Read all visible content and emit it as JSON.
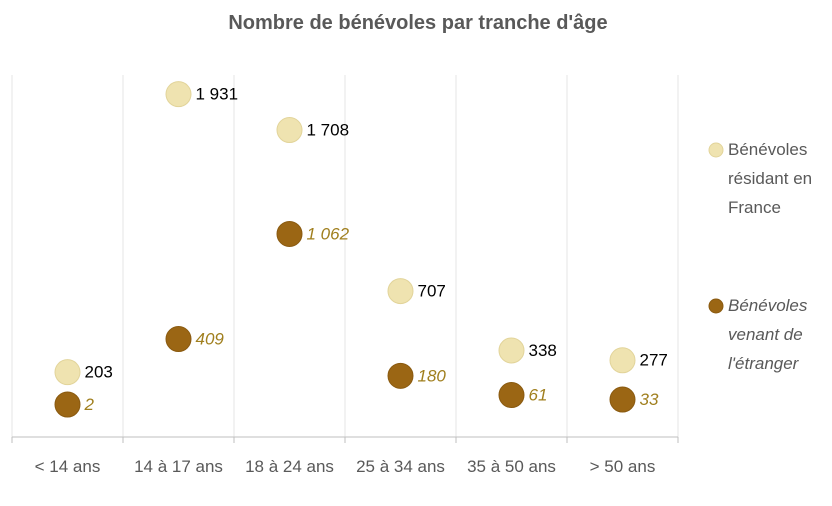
{
  "chart_data": {
    "type": "dot",
    "title": "Nombre de bénévoles par tranche d'âge",
    "categories": [
      "< 14 ans",
      "14 à 17 ans",
      "18 à 24 ans",
      "25 à 34 ans",
      "35 à 50 ans",
      "> 50 ans"
    ],
    "series": [
      {
        "name": "Bénévoles résidant en France",
        "color": "#efe3b0",
        "values": [
          203,
          1931,
          1708,
          707,
          338,
          277
        ],
        "value_labels": [
          "203",
          "1 931",
          "1 708",
          "707",
          "338",
          "277"
        ]
      },
      {
        "name": "Bénévoles venant de l'étranger",
        "color": "#9b6614",
        "values": [
          2,
          409,
          1062,
          180,
          61,
          33
        ],
        "value_labels": [
          "2",
          "409",
          "1 062",
          "180",
          "61",
          "33"
        ]
      }
    ],
    "ylim": [
      -200,
      2050
    ],
    "legend": "right"
  }
}
